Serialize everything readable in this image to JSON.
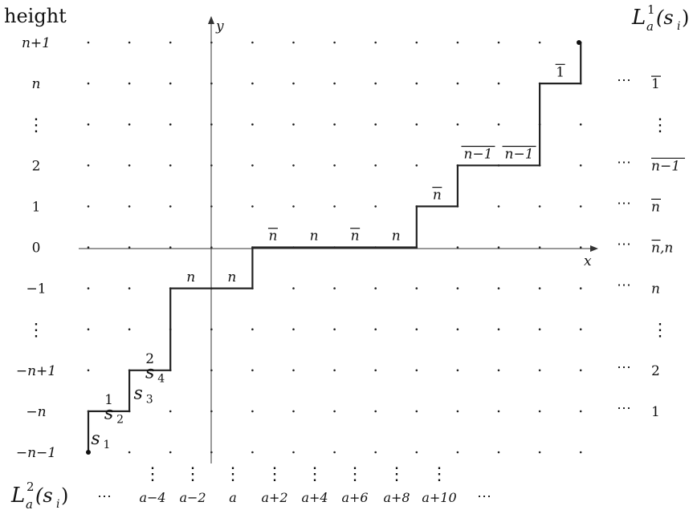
{
  "header": {
    "left_title": "height",
    "right_title_main": "L",
    "right_title_sup": "1",
    "right_title_sub": "a",
    "right_title_arg": "(s",
    "right_title_arg_sub": "i",
    "right_title_close": ")"
  },
  "axes": {
    "y_label": "y",
    "x_label": "x"
  },
  "left_heights": [
    {
      "id": "np1",
      "text": "n+1",
      "row": 0
    },
    {
      "id": "n",
      "text": "n",
      "row": 1
    },
    {
      "id": "vdots-top",
      "text": "⋮",
      "row": 2
    },
    {
      "id": "2",
      "text": "2",
      "row": 3
    },
    {
      "id": "1",
      "text": "1",
      "row": 4
    },
    {
      "id": "0",
      "text": "0",
      "row": 5
    },
    {
      "id": "m1",
      "text": "−1",
      "row": 6
    },
    {
      "id": "vdots-bottom",
      "text": "⋮",
      "row": 7
    },
    {
      "id": "mnp1",
      "text": "−n+1",
      "row": 8
    },
    {
      "id": "mn",
      "text": "−n",
      "row": 9
    },
    {
      "id": "mnm1",
      "text": "−n−1",
      "row": 10
    }
  ],
  "right_labels": [
    {
      "id": "bar1",
      "text": "1",
      "bar": true,
      "row": 1,
      "dots": true
    },
    {
      "id": "vdots",
      "text": "⋮",
      "bar": false,
      "row": 2,
      "dots": false
    },
    {
      "id": "bar-nm1",
      "text": "n−1",
      "bar": true,
      "row": 3,
      "dots": true
    },
    {
      "id": "bar-n",
      "text": "n",
      "bar": true,
      "row": 4,
      "dots": true
    },
    {
      "id": "barn-n",
      "text": "n,n",
      "bar": "first",
      "row": 5,
      "dots": true
    },
    {
      "id": "n",
      "text": "n",
      "bar": false,
      "row": 6,
      "dots": true
    },
    {
      "id": "vdots2",
      "text": "⋮",
      "bar": false,
      "row": 7,
      "dots": false
    },
    {
      "id": "two",
      "text": "2",
      "bar": false,
      "row": 8,
      "dots": true
    },
    {
      "id": "one",
      "text": "1",
      "bar": false,
      "row": 9,
      "dots": true
    }
  ],
  "step_labels": [
    {
      "id": "s1",
      "text": "s",
      "sub": "1",
      "col": 0,
      "row": 9.8,
      "kind": "s"
    },
    {
      "id": "s2",
      "text": "s",
      "sub": "2",
      "col": 0.5,
      "row": 8.8,
      "kind": "s"
    },
    {
      "id": "s3",
      "text": "s",
      "sub": "3",
      "col": 1.1,
      "row": 8.6,
      "kind": "s"
    },
    {
      "id": "s4",
      "text": "s",
      "sub": "4",
      "col": 1.5,
      "row": 7.8,
      "kind": "s"
    },
    {
      "id": "lab-1",
      "text": "1",
      "col": 0.5,
      "row": 8.75,
      "kind": "top",
      "bar": false
    },
    {
      "id": "lab-2",
      "text": "2",
      "col": 1.5,
      "row": 7.75,
      "kind": "top",
      "bar": false
    },
    {
      "id": "lab-n-a",
      "text": "n",
      "col": 2.5,
      "row": 5.75,
      "kind": "top",
      "bar": false
    },
    {
      "id": "lab-n-b",
      "text": "n",
      "col": 3.5,
      "row": 5.75,
      "kind": "top",
      "bar": false
    },
    {
      "id": "lab-nbar-a",
      "text": "n",
      "col": 4.5,
      "row": 4.75,
      "kind": "top",
      "bar": true
    },
    {
      "id": "lab-n-c",
      "text": "n",
      "col": 5.5,
      "row": 4.75,
      "kind": "top",
      "bar": false
    },
    {
      "id": "lab-nbar-b",
      "text": "n",
      "col": 6.5,
      "row": 4.75,
      "kind": "top",
      "bar": true
    },
    {
      "id": "lab-n-d",
      "text": "n",
      "col": 7.5,
      "row": 4.75,
      "kind": "top",
      "bar": false
    },
    {
      "id": "lab-nbar-c",
      "text": "n",
      "col": 8.5,
      "row": 3.75,
      "kind": "top",
      "bar": true
    },
    {
      "id": "lab-nm1-a",
      "text": "n−1",
      "col": 9.5,
      "row": 2.75,
      "kind": "top",
      "bar": true
    },
    {
      "id": "lab-nm1-b",
      "text": "n−1",
      "col": 10.5,
      "row": 2.75,
      "kind": "top",
      "bar": true
    },
    {
      "id": "lab-1bar",
      "text": "1",
      "col": 11.5,
      "row": 0.75,
      "kind": "top",
      "bar": true
    }
  ],
  "bottom": {
    "label_main": "L",
    "label_sup": "2",
    "label_sub": "a",
    "label_arg": "(s",
    "label_arg_sub": "i",
    "label_close": ")",
    "leading_dots": "⋯",
    "trailing_dots": "⋯",
    "columns": [
      {
        "text": "a−4",
        "col": 1.5
      },
      {
        "text": "a−2",
        "col": 2.5
      },
      {
        "text": "a",
        "col": 3.5
      },
      {
        "text": "a+2",
        "col": 4.5
      },
      {
        "text": "a+4",
        "col": 5.5
      },
      {
        "text": "a+6",
        "col": 6.5
      },
      {
        "text": "a+8",
        "col": 7.5
      },
      {
        "text": "a+10",
        "col": 8.5
      }
    ]
  }
}
